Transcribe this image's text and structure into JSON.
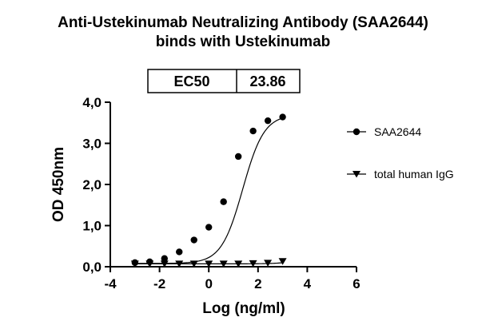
{
  "chart_data": {
    "type": "scatter",
    "title": "Anti-Ustekinumab Neutralizing Antibody (SAA2644)",
    "subtitle": "binds with Ustekinumab",
    "xlabel": "Log (ng/ml)",
    "ylabel": "OD 450nm",
    "xlim": [
      -4,
      6
    ],
    "ylim": [
      0,
      4
    ],
    "xticks": [
      -4,
      -2,
      0,
      2,
      4,
      6
    ],
    "xtick_labels": [
      "-4",
      "-2",
      "0",
      "2",
      "4",
      "6"
    ],
    "yticks": [
      0,
      1,
      2,
      3,
      4
    ],
    "ytick_labels": [
      "0,0",
      "1,0",
      "2,0",
      "3,0",
      "4,0"
    ],
    "grid": false,
    "legend_position": "right",
    "ec50": {
      "label": "EC50",
      "value": "23.86"
    },
    "series": [
      {
        "name": "SAA2644",
        "marker": "circle",
        "points": [
          {
            "x": -3.0,
            "y": 0.1
          },
          {
            "x": -2.4,
            "y": 0.12
          },
          {
            "x": -1.8,
            "y": 0.2
          },
          {
            "x": -1.2,
            "y": 0.36
          },
          {
            "x": -0.6,
            "y": 0.65
          },
          {
            "x": 0.0,
            "y": 0.96
          },
          {
            "x": 0.6,
            "y": 1.58
          },
          {
            "x": 1.2,
            "y": 2.68
          },
          {
            "x": 1.8,
            "y": 3.3
          },
          {
            "x": 2.4,
            "y": 3.55
          },
          {
            "x": 3.0,
            "y": 3.64
          }
        ],
        "fit": {
          "bottom": 0.08,
          "top": 3.7,
          "log_ec50": 1.38,
          "hill": 1.0
        }
      },
      {
        "name": "total human IgG",
        "marker": "triangle-down",
        "points": [
          {
            "x": -3.0,
            "y": 0.07
          },
          {
            "x": -2.4,
            "y": 0.07
          },
          {
            "x": -1.8,
            "y": 0.07
          },
          {
            "x": -1.2,
            "y": 0.07
          },
          {
            "x": -0.6,
            "y": 0.07
          },
          {
            "x": 0.0,
            "y": 0.07
          },
          {
            "x": 0.6,
            "y": 0.07
          },
          {
            "x": 1.2,
            "y": 0.07
          },
          {
            "x": 1.8,
            "y": 0.08
          },
          {
            "x": 2.4,
            "y": 0.09
          },
          {
            "x": 3.0,
            "y": 0.13
          }
        ],
        "fit": {
          "bottom": 0.07,
          "top": 0.2,
          "log_ec50": 3.6,
          "hill": 1.0
        }
      }
    ]
  }
}
